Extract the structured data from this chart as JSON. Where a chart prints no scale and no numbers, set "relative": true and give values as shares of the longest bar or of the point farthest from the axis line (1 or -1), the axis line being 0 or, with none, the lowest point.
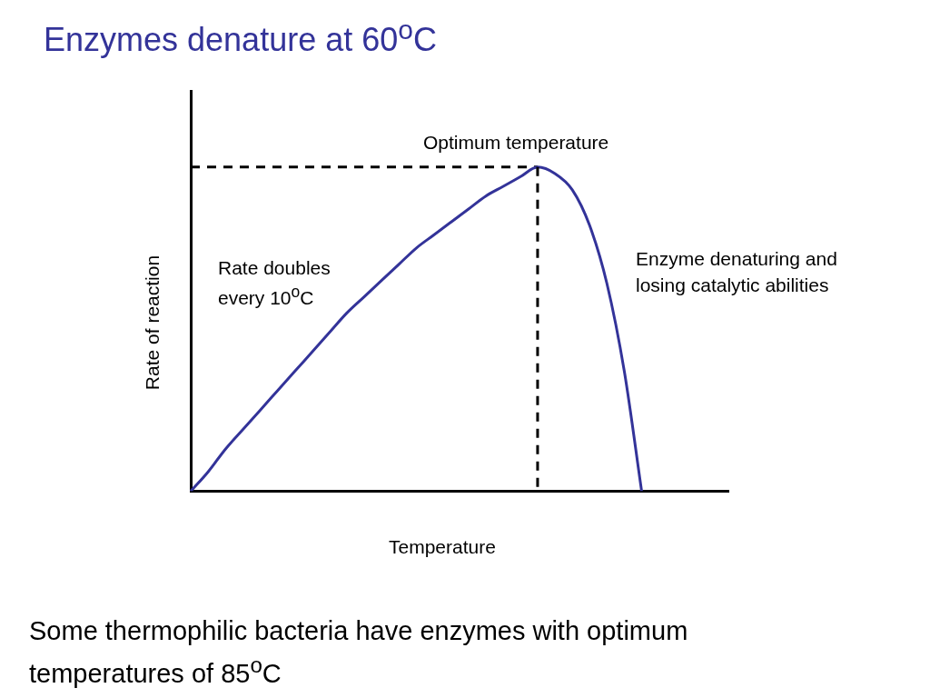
{
  "chart_data": {
    "type": "line",
    "title": "Enzymes denature at 60$^{o}$C",
    "xlabel": "Temperature",
    "ylabel": "Rate of reaction",
    "relative": true,
    "categories": [
      null,
      null,
      null,
      null,
      null,
      null,
      null,
      null,
      null,
      null,
      null,
      null,
      null,
      null,
      null,
      null,
      null,
      null,
      null,
      null,
      null,
      null,
      null,
      null,
      null,
      null,
      null,
      null,
      null,
      null,
      null,
      null
    ],
    "series": [
      {
        "color": "#333399",
        "values": [
          0,
          0.06,
          0.13,
          0.19,
          0.25,
          0.31,
          0.37,
          0.43,
          0.49,
          0.55,
          0.6,
          0.65,
          0.7,
          0.75,
          0.79,
          0.83,
          0.87,
          0.91,
          0.94,
          0.97,
          1,
          0.98,
          0.93,
          0.82,
          0.64,
          0.37,
          0,
          null,
          null,
          null,
          null,
          null
        ]
      },
      {
        "color": "#000000",
        "line_style": "dashed",
        "values": [
          1,
          1,
          1,
          1,
          1,
          1,
          1,
          1,
          1,
          1,
          1,
          1,
          1,
          1,
          1,
          1,
          1,
          1,
          1,
          1,
          1,
          null,
          null,
          null,
          null,
          null,
          null,
          null,
          null,
          null,
          null,
          null
        ]
      }
    ],
    "annotations": [
      "Optimum temperature",
      "Rate doubles every 10$^{o}$C",
      "Enzyme denaturing and losing catalytic abilities",
      "Some thermophilic bacteria have enzymes with optimum temperatures of 85$^{o}$C"
    ],
    "grid": false,
    "legend": false,
    "marker": "none",
    "line_style": "solid"
  }
}
